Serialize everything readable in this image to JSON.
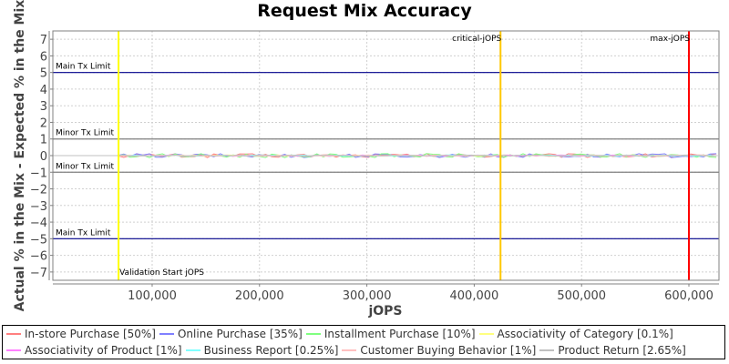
{
  "chart_data": {
    "type": "line",
    "title": "Request Mix Accuracy",
    "xlabel": "jOPS",
    "ylabel": "Actual % in the Mix - Expected % in the Mix",
    "xlim": [
      7500,
      628000
    ],
    "ylim": [
      -7.5,
      7.5
    ],
    "x_ticks": [
      100000,
      200000,
      300000,
      400000,
      500000,
      600000
    ],
    "x_tick_labels": [
      "100,000",
      "200,000",
      "300,000",
      "400,000",
      "500,000",
      "600,000"
    ],
    "y_ticks": [
      7,
      6,
      5,
      4,
      3,
      2,
      1,
      0,
      -1,
      -2,
      -3,
      -4,
      -5,
      -6,
      -7
    ],
    "y_tick_labels": [
      "7",
      "6",
      "5",
      "4",
      "3",
      "2",
      "1",
      "0",
      "−1",
      "−2",
      "−3",
      "−4",
      "−5",
      "−6",
      "−7"
    ],
    "grid": true,
    "legend_position": "bottom",
    "horizontal_markers": [
      {
        "label": "Main Tx Limit",
        "y": 5,
        "color": "#00008b"
      },
      {
        "label": "Minor Tx Limit",
        "y": 1,
        "color": "#808080"
      },
      {
        "label": "Minor Tx Limit",
        "y": -1,
        "color": "#808080"
      },
      {
        "label": "Main Tx Limit",
        "y": -5,
        "color": "#00008b"
      }
    ],
    "vertical_markers": [
      {
        "label": "Validation Start jOPS",
        "x": 68700,
        "color": "#ffff00"
      },
      {
        "label": "critical-jOPS",
        "x": 424500,
        "color": "#ffc800"
      },
      {
        "label": "max-jOPS",
        "x": 600000,
        "color": "#ff0000"
      }
    ],
    "series": [
      {
        "name": "In-store Purchase [50%]",
        "color": "#ff8080",
        "note": "fluctuates within about ±0.15 around 0"
      },
      {
        "name": "Online Purchase [35%]",
        "color": "#8080ff",
        "note": "fluctuates within about ±0.15 around 0"
      },
      {
        "name": "Installment Purchase [10%]",
        "color": "#80ff80",
        "note": "fluctuates within about ±0.1 around 0"
      },
      {
        "name": "Associativity of Category [0.1%]",
        "color": "#ffff80",
        "note": "near 0"
      },
      {
        "name": "Associativity of Product [1%]",
        "color": "#ff80ff",
        "note": "near 0"
      },
      {
        "name": "Business Report [0.25%]",
        "color": "#80ffff",
        "note": "near 0"
      },
      {
        "name": "Customer Buying Behavior [1%]",
        "color": "#ffc0c0",
        "note": "near 0"
      },
      {
        "name": "Product Return [2.65%]",
        "color": "#c0c0c0",
        "note": "near 0"
      }
    ]
  },
  "legend": {
    "row1": [
      {
        "label": "In-store Purchase [50%]",
        "color": "#ff8080"
      },
      {
        "label": "Online Purchase [35%]",
        "color": "#8080ff"
      },
      {
        "label": "Installment Purchase [10%]",
        "color": "#80ff80"
      },
      {
        "label": "Associativity of Category [0.1%]",
        "color": "#ffff80"
      }
    ],
    "row2": [
      {
        "label": "Associativity of Product [1%]",
        "color": "#ff80ff"
      },
      {
        "label": "Business Report [0.25%]",
        "color": "#80ffff"
      },
      {
        "label": "Customer Buying Behavior [1%]",
        "color": "#ffc0c0"
      },
      {
        "label": "Product Return [2.65%]",
        "color": "#c0c0c0"
      }
    ]
  }
}
